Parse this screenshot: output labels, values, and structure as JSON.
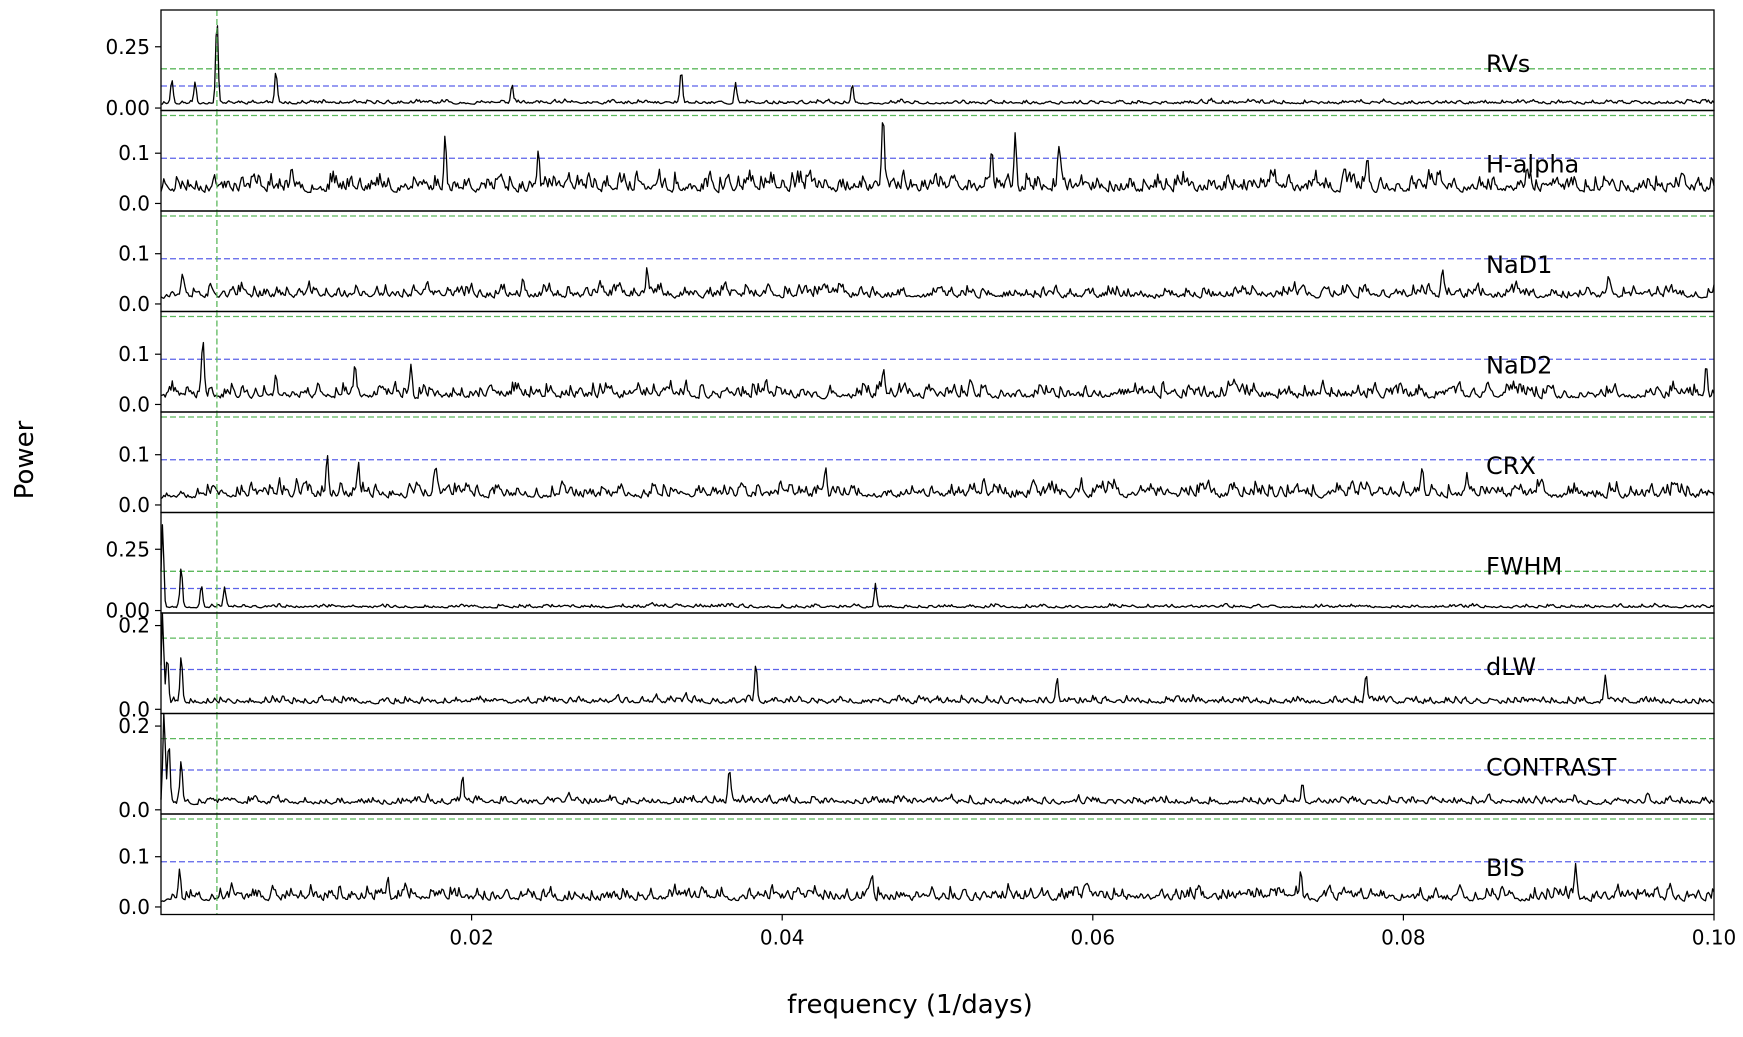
{
  "chart_data": {
    "type": "line",
    "xlabel": "frequency (1/days)",
    "ylabel": "Power",
    "xlim": [
      0.0,
      0.1
    ],
    "x_ticks": [
      0.02,
      0.04,
      0.06,
      0.08,
      0.1
    ],
    "x_tick_labels": [
      "0.02",
      "0.04",
      "0.06",
      "0.08",
      "0.10"
    ],
    "vertical_marker_frequency": 0.0036,
    "colors": {
      "series": "#000000",
      "threshold_upper": "#5cb85c",
      "threshold_lower": "#5b62ea",
      "marker": "#5cb85c"
    },
    "panels": [
      {
        "label": "RVs",
        "ylim": [
          -0.01,
          0.4
        ],
        "y_ticks": [
          0.0,
          0.25
        ],
        "y_tick_labels": [
          "0.00",
          "0.25"
        ],
        "threshold_upper": 0.16,
        "threshold_lower": 0.09,
        "baseline": 0.015,
        "noise": 0.02,
        "peaks": [
          {
            "x": 0.0036,
            "y": 0.37
          },
          {
            "x": 0.0074,
            "y": 0.14
          },
          {
            "x": 0.0335,
            "y": 0.14
          },
          {
            "x": 0.0226,
            "y": 0.09
          },
          {
            "x": 0.0007,
            "y": 0.11
          },
          {
            "x": 0.0022,
            "y": 0.1
          },
          {
            "x": 0.037,
            "y": 0.09
          },
          {
            "x": 0.0445,
            "y": 0.08
          }
        ],
        "seed": 11
      },
      {
        "label": "H-alpha",
        "ylim": [
          -0.015,
          0.185
        ],
        "y_ticks": [
          0.0,
          0.1
        ],
        "y_tick_labels": [
          "0.0",
          "0.1"
        ],
        "threshold_upper": 0.175,
        "threshold_lower": 0.09,
        "baseline": 0.02,
        "noise": 0.045,
        "peaks": [
          {
            "x": 0.0465,
            "y": 0.165
          },
          {
            "x": 0.055,
            "y": 0.12
          },
          {
            "x": 0.0183,
            "y": 0.115
          },
          {
            "x": 0.0578,
            "y": 0.11
          },
          {
            "x": 0.0243,
            "y": 0.105
          },
          {
            "x": 0.0535,
            "y": 0.105
          },
          {
            "x": 0.0777,
            "y": 0.075
          }
        ],
        "seed": 23
      },
      {
        "label": "NaD1",
        "ylim": [
          -0.015,
          0.185
        ],
        "y_ticks": [
          0.0,
          0.1
        ],
        "y_tick_labels": [
          "0.0",
          "0.1"
        ],
        "threshold_upper": 0.175,
        "threshold_lower": 0.09,
        "baseline": 0.01,
        "noise": 0.032,
        "peaks": [
          {
            "x": 0.0014,
            "y": 0.055
          },
          {
            "x": 0.0313,
            "y": 0.055
          },
          {
            "x": 0.0233,
            "y": 0.05
          },
          {
            "x": 0.0932,
            "y": 0.05
          },
          {
            "x": 0.0825,
            "y": 0.045
          }
        ],
        "seed": 37
      },
      {
        "label": "NaD2",
        "ylim": [
          -0.015,
          0.185
        ],
        "y_ticks": [
          0.0,
          0.1
        ],
        "y_tick_labels": [
          "0.0",
          "0.1"
        ],
        "threshold_upper": 0.175,
        "threshold_lower": 0.09,
        "baseline": 0.01,
        "noise": 0.035,
        "peaks": [
          {
            "x": 0.0027,
            "y": 0.1
          },
          {
            "x": 0.0125,
            "y": 0.075
          },
          {
            "x": 0.0161,
            "y": 0.072
          },
          {
            "x": 0.0995,
            "y": 0.072
          },
          {
            "x": 0.0074,
            "y": 0.055
          },
          {
            "x": 0.0465,
            "y": 0.055
          }
        ],
        "seed": 41
      },
      {
        "label": "CRX",
        "ylim": [
          -0.015,
          0.185
        ],
        "y_ticks": [
          0.0,
          0.1
        ],
        "y_tick_labels": [
          "0.0",
          "0.1"
        ],
        "threshold_upper": 0.175,
        "threshold_lower": 0.09,
        "baseline": 0.012,
        "noise": 0.038,
        "peaks": [
          {
            "x": 0.0107,
            "y": 0.08
          },
          {
            "x": 0.0127,
            "y": 0.07
          },
          {
            "x": 0.0428,
            "y": 0.07
          },
          {
            "x": 0.0841,
            "y": 0.06
          },
          {
            "x": 0.0177,
            "y": 0.06
          },
          {
            "x": 0.0812,
            "y": 0.055
          }
        ],
        "seed": 53
      },
      {
        "label": "FWHM",
        "ylim": [
          -0.01,
          0.4
        ],
        "y_ticks": [
          0.0,
          0.25
        ],
        "y_tick_labels": [
          "0.00",
          "0.25"
        ],
        "threshold_upper": 0.16,
        "threshold_lower": 0.09,
        "baseline": 0.01,
        "noise": 0.018,
        "peaks": [
          {
            "x": 0.0001,
            "y": 0.35
          },
          {
            "x": 0.0013,
            "y": 0.17
          },
          {
            "x": 0.0026,
            "y": 0.1
          },
          {
            "x": 0.046,
            "y": 0.1
          },
          {
            "x": 0.0041,
            "y": 0.08
          }
        ],
        "seed": 67
      },
      {
        "label": "dLW",
        "ylim": [
          -0.01,
          0.23
        ],
        "y_ticks": [
          0.0,
          0.2
        ],
        "y_tick_labels": [
          "0.0",
          "0.2"
        ],
        "threshold_upper": 0.17,
        "threshold_lower": 0.095,
        "baseline": 0.012,
        "noise": 0.022,
        "peaks": [
          {
            "x": 0.0001,
            "y": 0.22
          },
          {
            "x": 0.0004,
            "y": 0.12
          },
          {
            "x": 0.0013,
            "y": 0.12
          },
          {
            "x": 0.0383,
            "y": 0.1
          },
          {
            "x": 0.093,
            "y": 0.08
          },
          {
            "x": 0.0776,
            "y": 0.075
          },
          {
            "x": 0.0577,
            "y": 0.07
          }
        ],
        "seed": 79
      },
      {
        "label": "CONTRAST",
        "ylim": [
          -0.01,
          0.23
        ],
        "y_ticks": [
          0.0,
          0.2
        ],
        "y_tick_labels": [
          "0.0",
          "0.2"
        ],
        "threshold_upper": 0.17,
        "threshold_lower": 0.095,
        "baseline": 0.012,
        "noise": 0.024,
        "peaks": [
          {
            "x": 0.0002,
            "y": 0.22
          },
          {
            "x": 0.0005,
            "y": 0.15
          },
          {
            "x": 0.0013,
            "y": 0.11
          },
          {
            "x": 0.0366,
            "y": 0.08
          },
          {
            "x": 0.0194,
            "y": 0.07
          },
          {
            "x": 0.0735,
            "y": 0.065
          }
        ],
        "seed": 83
      },
      {
        "label": "BIS",
        "ylim": [
          -0.015,
          0.185
        ],
        "y_ticks": [
          0.0,
          0.1
        ],
        "y_tick_labels": [
          "0.0",
          "0.1"
        ],
        "threshold_upper": 0.175,
        "threshold_lower": 0.09,
        "baseline": 0.01,
        "noise": 0.033,
        "peaks": [
          {
            "x": 0.0012,
            "y": 0.075
          },
          {
            "x": 0.0734,
            "y": 0.065
          },
          {
            "x": 0.0911,
            "y": 0.065
          },
          {
            "x": 0.0458,
            "y": 0.055
          },
          {
            "x": 0.0146,
            "y": 0.05
          }
        ],
        "seed": 97
      }
    ]
  }
}
